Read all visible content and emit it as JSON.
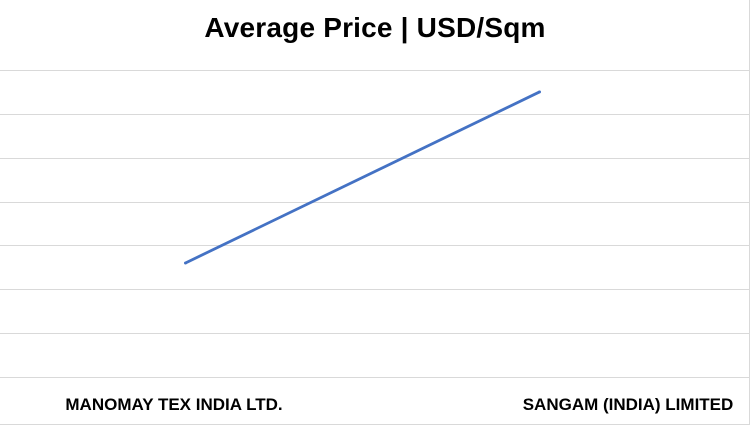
{
  "chart_data": {
    "type": "line",
    "title": "Average Price | USD/Sqm",
    "xlabel": "",
    "ylabel": "",
    "categories": [
      "MANOMAY TEX INDIA LTD.",
      "SANGAM (INDIA) LIMITED"
    ],
    "series": [
      {
        "values": [
          2.6,
          6.5
        ]
      }
    ],
    "ylim": [
      0,
      7
    ],
    "grid": true,
    "legend": "none",
    "colors": {
      "line": "#4472c4",
      "grid": "#d9d9d9"
    }
  }
}
